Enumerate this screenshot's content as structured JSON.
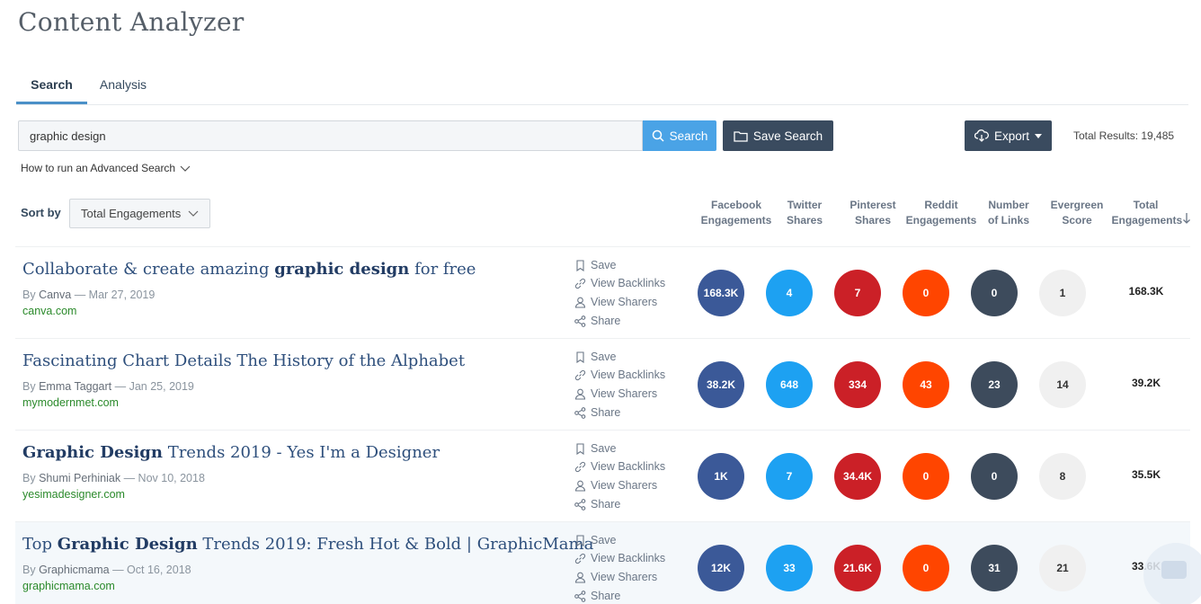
{
  "app": {
    "title": "Content Analyzer"
  },
  "tabs": [
    {
      "label": "Search",
      "active": true
    },
    {
      "label": "Analysis",
      "active": false
    }
  ],
  "search": {
    "value": "graphic design",
    "button_label": "Search",
    "save_label": "Save Search"
  },
  "export": {
    "label": "Export"
  },
  "total_results": "Total Results: 19,485",
  "advanced_link": "How to run an Advanced Search",
  "sort": {
    "label": "Sort by",
    "value": "Total Engagements"
  },
  "columns": {
    "facebook": "Facebook Engagements",
    "twitter": "Twitter Shares",
    "pinterest": "Pinterest Shares",
    "reddit": "Reddit Engagements",
    "links": "Number of Links",
    "evergreen": "Evergreen Score",
    "total": "Total Engagements"
  },
  "actions": {
    "save": "Save",
    "backlinks": "View Backlinks",
    "sharers": "View Sharers",
    "share": "Share"
  },
  "results": [
    {
      "title_parts": [
        {
          "text": "Collaborate & create amazing ",
          "bold": false
        },
        {
          "text": "graphic design",
          "bold": true
        },
        {
          "text": " for free",
          "bold": false
        }
      ],
      "by": "By",
      "author": "Canva",
      "date": "— Mar 27, 2019",
      "domain": "canva.com",
      "facebook": "168.3K",
      "twitter": "4",
      "pinterest": "7",
      "reddit": "0",
      "links": "0",
      "evergreen": "1",
      "total": "168.3K"
    },
    {
      "title_parts": [
        {
          "text": "Fascinating Chart Details The History of the Alphabet",
          "bold": false
        }
      ],
      "by": "By",
      "author": "Emma Taggart",
      "date": "— Jan 25, 2019",
      "domain": "mymodernmet.com",
      "facebook": "38.2K",
      "twitter": "648",
      "pinterest": "334",
      "reddit": "43",
      "links": "23",
      "evergreen": "14",
      "total": "39.2K"
    },
    {
      "title_parts": [
        {
          "text": "Graphic Design",
          "bold": true
        },
        {
          "text": " Trends 2019 - Yes I'm a Designer",
          "bold": false
        }
      ],
      "by": "By",
      "author": "Shumi Perhiniak",
      "date": "— Nov 10, 2018",
      "domain": "yesimadesigner.com",
      "facebook": "1K",
      "twitter": "7",
      "pinterest": "34.4K",
      "reddit": "0",
      "links": "0",
      "evergreen": "8",
      "total": "35.5K"
    },
    {
      "title_parts": [
        {
          "text": "Top ",
          "bold": false
        },
        {
          "text": "Graphic Design",
          "bold": true
        },
        {
          "text": " Trends 2019: Fresh Hot & Bold | GraphicMama",
          "bold": false
        }
      ],
      "by": "By",
      "author": "Graphicmama",
      "date": "— Oct 16, 2018",
      "domain": "graphicmama.com",
      "facebook": "12K",
      "twitter": "33",
      "pinterest": "21.6K",
      "reddit": "0",
      "links": "31",
      "evergreen": "21",
      "total": "33.6K"
    }
  ],
  "colors": {
    "facebook": "#3b5998",
    "twitter": "#1da1f2",
    "pinterest": "#cb2027",
    "reddit": "#ff4500",
    "links": "#3d4b5c",
    "evergreen": "#f0f0f0",
    "accent": "#4aa3e6",
    "dark_button": "#3a4b5f",
    "domain": "#2b8a2b"
  },
  "icons": {
    "search": "search-icon",
    "save_search": "folder-icon",
    "export": "cloud-download-icon",
    "save": "bookmark-icon",
    "backlinks": "link-icon",
    "sharers": "user-icon",
    "share": "share-icon",
    "chat": "chat-icon"
  }
}
